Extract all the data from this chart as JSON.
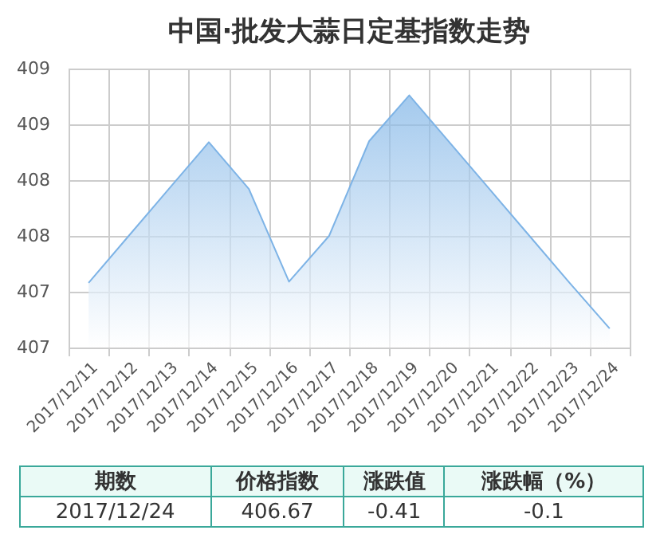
{
  "chart_data": {
    "type": "area",
    "title": "中国·批发大蒜日定基指数走势",
    "categories": [
      "2017/12/11",
      "2017/12/12",
      "2017/12/13",
      "2017/12/14",
      "2017/12/15",
      "2017/12/16",
      "2017/12/17",
      "2017/12/18",
      "2017/12/19",
      "2017/12/20",
      "2017/12/21",
      "2017/12/22",
      "2017/12/23",
      "2017/12/24"
    ],
    "series": [
      {
        "color": "#7db3e6",
        "values": [
          407.08,
          407.5,
          407.92,
          408.34,
          407.92,
          407.09,
          407.5,
          408.35,
          408.76,
          408.34,
          407.92,
          407.5,
          407.08,
          406.67
        ]
      }
    ],
    "ylim": [
      406.5,
      409
    ],
    "yticks": [
      {
        "value": 406.5,
        "label": "407"
      },
      {
        "value": 407,
        "label": "407"
      },
      {
        "value": 407.5,
        "label": "408"
      },
      {
        "value": 408,
        "label": "408"
      },
      {
        "value": 408.5,
        "label": "409"
      },
      {
        "value": 409,
        "label": "409"
      }
    ],
    "grid": true,
    "annotations": [
      "期数",
      "价格指数",
      "涨跌值",
      "涨跌幅（%）",
      "2017/12/24",
      "406.67",
      "-0.41",
      "-0.1"
    ]
  }
}
